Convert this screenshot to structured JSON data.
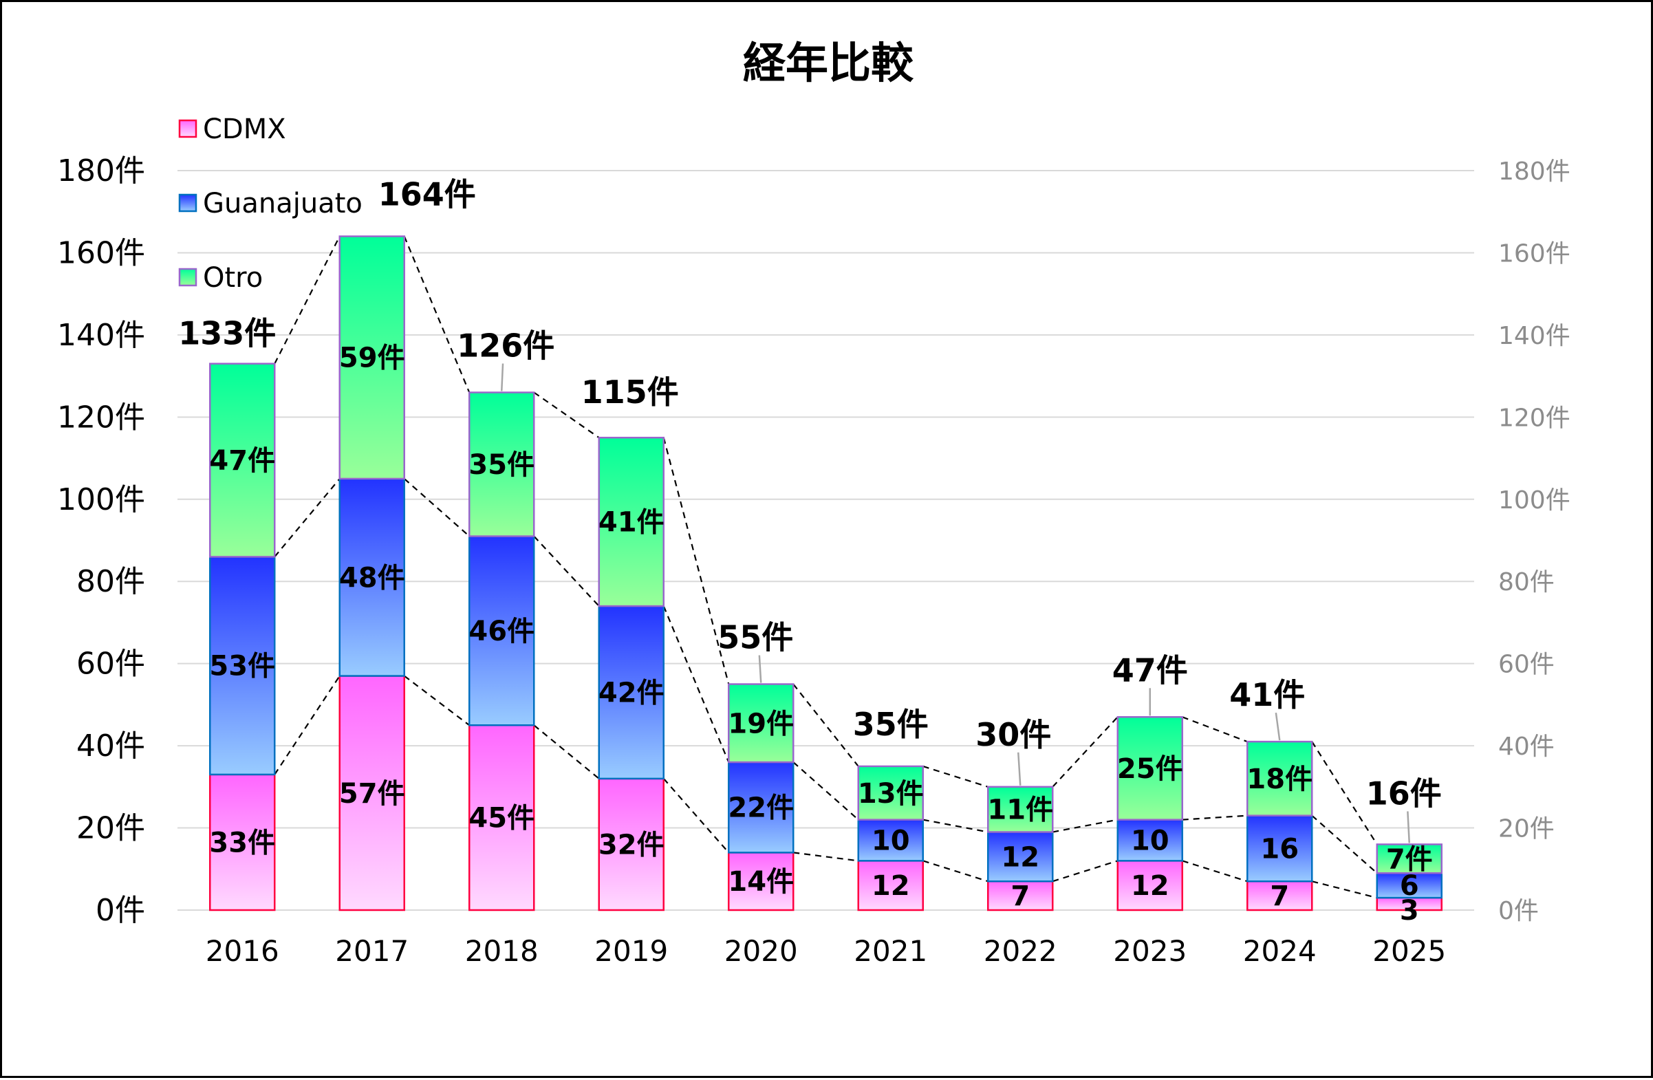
{
  "colors": {
    "CDMX": {
      "top": "#ff66ff",
      "bottom": "#ffd9ff",
      "border": "#ff0040"
    },
    "Guanajuato": {
      "top": "#2233ff",
      "bottom": "#99ccff",
      "border": "#0070c0"
    },
    "Otro": {
      "top": "#00ff99",
      "bottom": "#99ff99",
      "border": "#9966cc"
    }
  },
  "chart_data": {
    "type": "bar",
    "stacked": true,
    "title": "経年比較",
    "categories": [
      "2016",
      "2017",
      "2018",
      "2019",
      "2020",
      "2021",
      "2022",
      "2023",
      "2024",
      "2025"
    ],
    "series": [
      {
        "name": "CDMX",
        "values": [
          33,
          57,
          45,
          32,
          14,
          12,
          7,
          12,
          7,
          3
        ],
        "labels": [
          "33件",
          "57件",
          "45件",
          "32件",
          "14件",
          "12",
          "7",
          "12",
          "7",
          "3"
        ]
      },
      {
        "name": "Guanajuato",
        "values": [
          53,
          48,
          46,
          42,
          22,
          10,
          12,
          10,
          16,
          6
        ],
        "labels": [
          "53件",
          "48件",
          "46件",
          "42件",
          "22件",
          "10",
          "12",
          "10",
          "16",
          "6"
        ]
      },
      {
        "name": "Otro",
        "values": [
          47,
          59,
          35,
          41,
          19,
          13,
          11,
          25,
          18,
          7
        ],
        "labels": [
          "47件",
          "59件",
          "35件",
          "41件",
          "19件",
          "13件",
          "11件",
          "25件",
          "18件",
          "7件"
        ]
      }
    ],
    "totals": [
      133,
      164,
      126,
      115,
      55,
      35,
      30,
      47,
      41,
      16
    ],
    "total_labels": [
      "133件",
      "164件",
      "126件",
      "115件",
      "55件",
      "35件",
      "30件",
      "47件",
      "41件",
      "16件"
    ],
    "ylim": [
      0,
      180
    ],
    "y_ticks": [
      0,
      20,
      40,
      60,
      80,
      100,
      120,
      140,
      160,
      180
    ],
    "y_tick_labels": [
      "0件",
      "20件",
      "40件",
      "60件",
      "80件",
      "100件",
      "120件",
      "140件",
      "160件",
      "180件"
    ],
    "secondary_y_tick_labels": [
      "0件",
      "20件",
      "40件",
      "60件",
      "80件",
      "100件",
      "120件",
      "140件",
      "160件",
      "180件"
    ],
    "grid": true,
    "legend_position": "top-left",
    "series_lines": "dashed"
  }
}
